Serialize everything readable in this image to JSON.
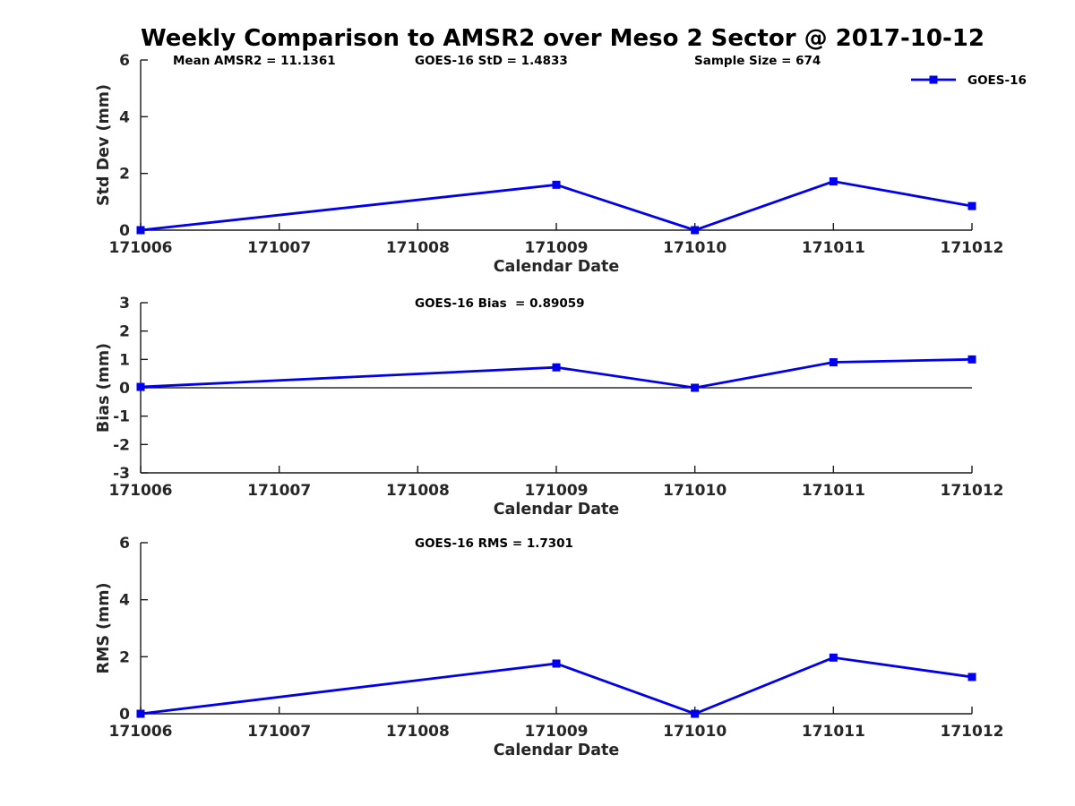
{
  "figure": {
    "title": "Weekly Comparison to AMSR2 over Meso 2 Sector @ 2017-10-12",
    "colors": {
      "line": "#0000EE",
      "axis": "#1a1a1a",
      "tick_label": "#262626",
      "title": "#000000",
      "zero_line": "#000000",
      "background": "#ffffff"
    }
  },
  "chart_data": [
    {
      "id": "std-dev",
      "type": "line",
      "title": "",
      "xlabel": "Calendar Date",
      "ylabel": "Std Dev (mm)",
      "xlim": [
        171006,
        171012
      ],
      "ylim": [
        0,
        6
      ],
      "x_tick_labels": [
        "171006",
        "171007",
        "171008",
        "171009",
        "171010",
        "171011",
        "171012"
      ],
      "y_ticks": [
        0,
        2,
        4,
        6
      ],
      "grid": false,
      "zero_line": false,
      "annotations": [
        {
          "text": "Mean AMSR2 = 11.1361",
          "x": 193
        },
        {
          "text": "GOES-16 StD = 1.4833",
          "x": 463
        },
        {
          "text": "Sample Size = 674",
          "x": 775
        }
      ],
      "legend": {
        "show": true,
        "label": "GOES-16",
        "position": "upper-right"
      },
      "series": [
        {
          "name": "GOES-16",
          "x": [
            171006,
            171009,
            171010,
            171011,
            171012
          ],
          "y": [
            0.0,
            1.6,
            0.0,
            1.72,
            0.85
          ]
        }
      ]
    },
    {
      "id": "bias",
      "type": "line",
      "title": "",
      "xlabel": "Calendar Date",
      "ylabel": "Bias (mm)",
      "xlim": [
        171006,
        171012
      ],
      "ylim": [
        -3,
        3
      ],
      "x_tick_labels": [
        "171006",
        "171007",
        "171008",
        "171009",
        "171010",
        "171011",
        "171012"
      ],
      "y_ticks": [
        -3,
        -2,
        -1,
        0,
        1,
        2,
        3
      ],
      "grid": false,
      "zero_line": true,
      "annotations": [
        {
          "text": "GOES-16 Bias  = 0.89059",
          "x": 463
        }
      ],
      "legend": {
        "show": false,
        "label": "GOES-16",
        "position": "none"
      },
      "series": [
        {
          "name": "GOES-16",
          "x": [
            171006,
            171009,
            171010,
            171011,
            171012
          ],
          "y": [
            0.03,
            0.72,
            0.0,
            0.9,
            1.0
          ]
        }
      ]
    },
    {
      "id": "rms",
      "type": "line",
      "title": "",
      "xlabel": "Calendar Date",
      "ylabel": "RMS (mm)",
      "xlim": [
        171006,
        171012
      ],
      "ylim": [
        0,
        6
      ],
      "x_tick_labels": [
        "171006",
        "171007",
        "171008",
        "171009",
        "171010",
        "171011",
        "171012"
      ],
      "y_ticks": [
        0,
        2,
        4,
        6
      ],
      "grid": false,
      "zero_line": false,
      "annotations": [
        {
          "text": "GOES-16 RMS = 1.7301",
          "x": 463
        }
      ],
      "legend": {
        "show": false,
        "label": "GOES-16",
        "position": "none"
      },
      "series": [
        {
          "name": "GOES-16",
          "x": [
            171006,
            171009,
            171010,
            171011,
            171012
          ],
          "y": [
            0.0,
            1.76,
            0.0,
            1.97,
            1.29
          ]
        }
      ]
    }
  ]
}
